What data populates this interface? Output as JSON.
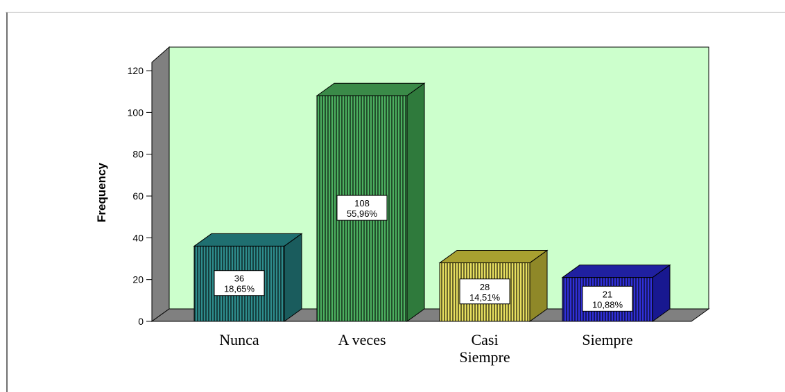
{
  "chart_data": {
    "type": "bar",
    "ylabel": "Frequency",
    "xlabel": "",
    "ylim": [
      0,
      120
    ],
    "yticks": [
      0,
      20,
      40,
      60,
      80,
      100,
      120
    ],
    "categories": [
      "Nunca",
      "A veces",
      "Casi Siempre",
      "Siempre"
    ],
    "category_lines": [
      [
        "Nunca"
      ],
      [
        "A veces"
      ],
      [
        "Casi",
        "Siempre"
      ],
      [
        "Siempre"
      ]
    ],
    "values": [
      36,
      108,
      28,
      21
    ],
    "percent_labels": [
      "18,65%",
      "55,96%",
      "14,51%",
      "10,88%"
    ],
    "bar_colors": [
      "#2e8c8c",
      "#4caf60",
      "#e8e060",
      "#3030d8"
    ],
    "bar_top_colors": [
      "#1f6f70",
      "#3a8a48",
      "#a8a030",
      "#2020a0"
    ],
    "bar_side_colors": [
      "#1a5c5d",
      "#2f7a3c",
      "#8f8828",
      "#181890"
    ],
    "plot_background": "#ccffcc",
    "floor_color": "#808080",
    "grid": false,
    "legend": "none",
    "style": "3d"
  }
}
